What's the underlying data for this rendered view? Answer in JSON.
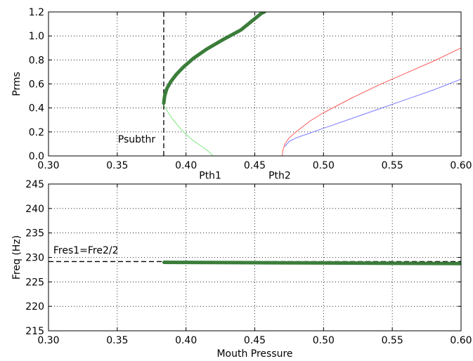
{
  "chart_data": [
    {
      "type": "line",
      "title": "",
      "xlabel": "",
      "ylabel": "Prms",
      "xlim": [
        0.3,
        0.6
      ],
      "ylim": [
        0.0,
        1.2
      ],
      "xticks": [
        "0.30",
        "0.35",
        "0.40",
        "0.45",
        "0.50",
        "0.55",
        "0.60"
      ],
      "yticks": [
        "0.0",
        "0.2",
        "0.4",
        "0.6",
        "0.8",
        "1.0",
        "1.2"
      ],
      "grid": true,
      "series": [
        {
          "color": "#3a7d3a",
          "style": "thick",
          "x": [
            0.3838,
            0.3845,
            0.386,
            0.389,
            0.393,
            0.398,
            0.405,
            0.415,
            0.427,
            0.44,
            0.455,
            0.457
          ],
          "y": [
            0.44,
            0.5,
            0.56,
            0.62,
            0.68,
            0.74,
            0.81,
            0.89,
            0.97,
            1.05,
            1.19,
            1.2
          ]
        },
        {
          "color": "#7fe87f",
          "style": "thin",
          "x": [
            0.384,
            0.386,
            0.39,
            0.395,
            0.4,
            0.405,
            0.41,
            0.415,
            0.418,
            0.4195
          ],
          "y": [
            0.42,
            0.38,
            0.31,
            0.24,
            0.18,
            0.13,
            0.09,
            0.05,
            0.02,
            0.0
          ]
        },
        {
          "color": "#ff5a5a",
          "style": "thin",
          "x": [
            0.47,
            0.4705,
            0.472,
            0.475,
            0.48,
            0.49,
            0.5,
            0.52,
            0.54,
            0.56,
            0.58,
            0.6
          ],
          "y": [
            0.0,
            0.05,
            0.1,
            0.15,
            0.2,
            0.29,
            0.36,
            0.48,
            0.59,
            0.69,
            0.79,
            0.9
          ]
        },
        {
          "color": "#7b7bff",
          "style": "thin",
          "x": [
            0.472,
            0.475,
            0.48,
            0.49,
            0.5,
            0.52,
            0.54,
            0.56,
            0.58,
            0.6
          ],
          "y": [
            0.08,
            0.12,
            0.15,
            0.19,
            0.23,
            0.31,
            0.39,
            0.47,
            0.55,
            0.64
          ]
        }
      ],
      "vline": {
        "x": 0.3838
      },
      "annotations": [
        {
          "text": "Psubthr",
          "x": 0.3505,
          "y": 0.11
        },
        {
          "text": "Pth1",
          "x": 0.4095,
          "y": -0.19
        },
        {
          "text": "Pth2",
          "x": 0.46,
          "y": -0.19
        }
      ]
    },
    {
      "type": "line",
      "title": "",
      "xlabel": "Mouth Pressure",
      "ylabel": "Freq (Hz)",
      "xlim": [
        0.3,
        0.6
      ],
      "ylim": [
        215,
        245
      ],
      "xticks": [
        "0.30",
        "0.35",
        "0.40",
        "0.45",
        "0.50",
        "0.55",
        "0.60"
      ],
      "yticks": [
        "215",
        "220",
        "225",
        "230",
        "235",
        "240",
        "245"
      ],
      "grid": true,
      "series": [
        {
          "color": "#3a7d3a",
          "style": "thick",
          "x": [
            0.384,
            0.4,
            0.45,
            0.5,
            0.55,
            0.6
          ],
          "y": [
            229.0,
            228.98,
            228.92,
            228.86,
            228.8,
            228.75
          ]
        }
      ],
      "hline": {
        "y": 229.15
      },
      "annotations": [
        {
          "text": "Fres1=Fre2/2",
          "x": 0.3035,
          "y": 230.8
        }
      ]
    }
  ]
}
